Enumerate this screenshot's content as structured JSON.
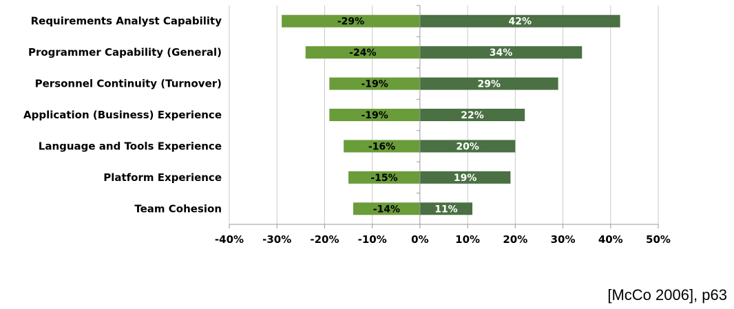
{
  "chart_data": {
    "type": "bar",
    "orientation": "horizontal",
    "stacked": "diverging",
    "categories": [
      "Requirements Analyst Capability",
      "Programmer Capability (General)",
      "Personnel Continuity (Turnover)",
      "Application (Business) Experience",
      "Language and Tools Experience",
      "Platform Experience",
      "Team Cohesion"
    ],
    "series": [
      {
        "values": [
          -29,
          -24,
          -19,
          -19,
          -16,
          -15,
          -14
        ],
        "labels": [
          "-29%",
          "-24%",
          "-19%",
          "-19%",
          "-16%",
          "-15%",
          "-14%"
        ],
        "color": "#6a9c3a",
        "label_color": "#000000"
      },
      {
        "values": [
          42,
          34,
          29,
          22,
          20,
          19,
          11
        ],
        "labels": [
          "42%",
          "34%",
          "29%",
          "22%",
          "20%",
          "19%",
          "11%"
        ],
        "color": "#4a7043",
        "label_color": "#ffffff"
      }
    ],
    "xlim": [
      -40,
      50
    ],
    "xticks": [
      -40,
      -30,
      -20,
      -10,
      0,
      10,
      20,
      30,
      40,
      50
    ],
    "xtick_labels": [
      "-40%",
      "-30%",
      "-20%",
      "-10%",
      "0%",
      "10%",
      "20%",
      "30%",
      "40%",
      "50%"
    ],
    "grid": "vertical",
    "title": "",
    "xlabel": "",
    "ylabel": ""
  },
  "source": "[McCo 2006], p63"
}
